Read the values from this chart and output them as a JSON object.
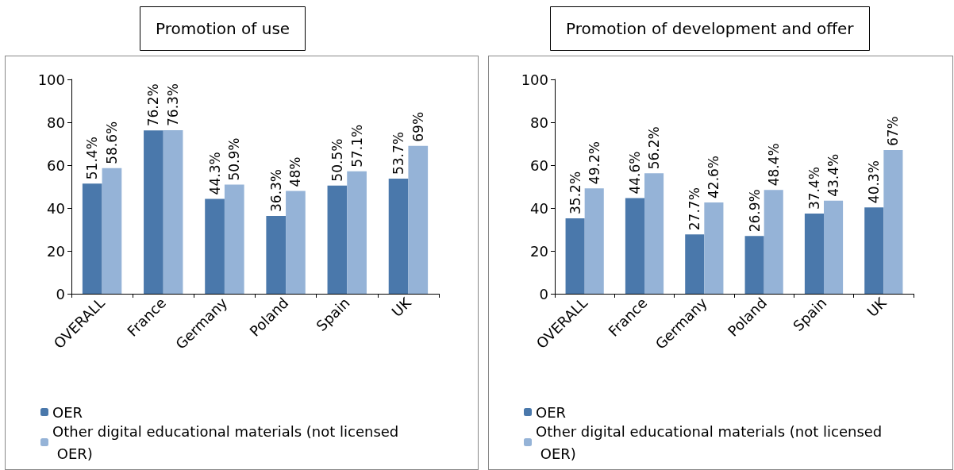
{
  "chart_data": [
    {
      "type": "bar",
      "title": "Promotion of use",
      "categories": [
        "OVERALL",
        "France",
        "Germany",
        "Poland",
        "Spain",
        "UK"
      ],
      "ylim": [
        0,
        100
      ],
      "yticks": [
        0,
        20,
        40,
        60,
        80,
        100
      ],
      "grid": false,
      "legend": "bottom",
      "series": [
        {
          "name": "OER",
          "color": "#4a78ab",
          "values": [
            51.4,
            76.2,
            44.3,
            36.3,
            50.5,
            53.7
          ],
          "value_labels": [
            "51.4%",
            "76.2%",
            "44.3%",
            "36.3%",
            "50.5%",
            "53.7%"
          ]
        },
        {
          "name": "Other digital educational materials (not licensed OER)",
          "color": "#95b3d7",
          "values": [
            58.6,
            76.3,
            50.9,
            48,
            57.1,
            69
          ],
          "value_labels": [
            "58.6%",
            "76.3%",
            "50.9%",
            "48%",
            "57.1%",
            "69%"
          ]
        }
      ]
    },
    {
      "type": "bar",
      "title": "Promotion of development and offer",
      "categories": [
        "OVERALL",
        "France",
        "Germany",
        "Poland",
        "Spain",
        "UK"
      ],
      "ylim": [
        0,
        100
      ],
      "yticks": [
        0,
        20,
        40,
        60,
        80,
        100
      ],
      "grid": false,
      "legend": "bottom",
      "series": [
        {
          "name": "OER",
          "color": "#4a78ab",
          "values": [
            35.2,
            44.6,
            27.7,
            26.9,
            37.4,
            40.3
          ],
          "value_labels": [
            "35.2%",
            "44.6%",
            "27.7%",
            "26.9%",
            "37.4%",
            "40.3%"
          ]
        },
        {
          "name": "Other digital educational materials (not licensed OER)",
          "color": "#95b3d7",
          "values": [
            49.2,
            56.2,
            42.6,
            48.4,
            43.4,
            67
          ],
          "value_labels": [
            "49.2%",
            "56.2%",
            "42.6%",
            "48.4%",
            "43.4%",
            "67%"
          ]
        }
      ]
    }
  ]
}
